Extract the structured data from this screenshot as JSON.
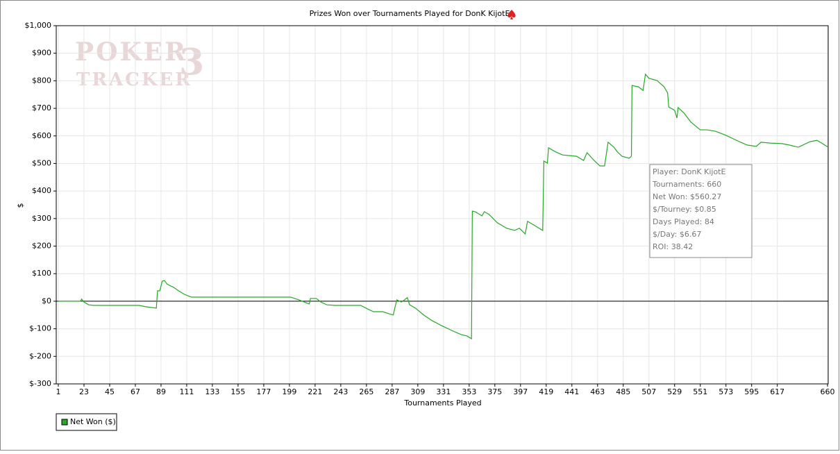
{
  "chart_data": {
    "type": "line",
    "title": "Prizes Won over Tournaments Played for DonK KijotE",
    "xlabel": "Tournaments Played",
    "ylabel": "$",
    "watermark": [
      "POKER",
      "3",
      "TRACKER"
    ],
    "annotations": [
      "Player: DonK KijotE",
      "Tournaments: 660",
      "Net Won: $560.27",
      "$/Tourney: $0.85",
      "Days Played: 84",
      "$/Day: $6.67",
      "ROI: 38.42"
    ],
    "grid": true,
    "legend": "bottom-left",
    "xlim": [
      1,
      660
    ],
    "ylim": [
      -300,
      1000
    ],
    "xticks": [
      1,
      23,
      45,
      67,
      89,
      111,
      133,
      155,
      177,
      199,
      221,
      243,
      265,
      287,
      309,
      331,
      353,
      375,
      397,
      419,
      441,
      463,
      485,
      507,
      529,
      551,
      573,
      595,
      617,
      660
    ],
    "yticks": [
      {
        "value": -300,
        "label": "$-300"
      },
      {
        "value": -200,
        "label": "$-200"
      },
      {
        "value": -100,
        "label": "$-100"
      },
      {
        "value": 0,
        "label": "$0"
      },
      {
        "value": 100,
        "label": "$100"
      },
      {
        "value": 200,
        "label": "$200"
      },
      {
        "value": 300,
        "label": "$300"
      },
      {
        "value": 400,
        "label": "$400"
      },
      {
        "value": 500,
        "label": "$500"
      },
      {
        "value": 600,
        "label": "$600"
      },
      {
        "value": 700,
        "label": "$700"
      },
      {
        "value": 800,
        "label": "$800"
      },
      {
        "value": 900,
        "label": "$900"
      },
      {
        "value": 1000,
        "label": "$1,000"
      }
    ],
    "x": [
      1,
      20,
      21,
      23,
      27,
      31,
      70,
      76,
      85,
      86,
      88,
      90,
      92,
      94,
      96,
      100,
      104,
      109,
      115,
      147,
      200,
      207,
      213,
      216,
      217,
      222,
      226,
      231,
      238,
      260,
      266,
      271,
      279,
      284,
      288,
      289,
      291,
      295,
      297,
      300,
      302,
      307,
      314,
      321,
      329,
      338,
      346,
      351,
      355,
      355.7,
      358,
      364,
      366,
      370,
      377,
      385,
      392,
      396,
      401,
      403,
      409,
      416,
      417,
      420,
      421,
      427,
      433,
      445,
      451,
      454,
      460,
      465,
      469,
      472,
      477,
      480,
      484,
      490,
      492,
      492.5,
      498,
      502,
      504,
      507,
      514,
      520,
      523,
      524,
      529,
      531,
      532,
      537,
      543,
      551,
      557,
      564,
      573,
      582,
      591,
      599,
      603,
      611,
      621,
      627,
      635,
      645,
      651,
      655,
      660
    ],
    "series": [
      {
        "name": "Net Won ($)",
        "color": "#22aa22",
        "values": [
          0,
          0,
          8,
          -3,
          -13,
          -15,
          -15,
          -20,
          -25,
          38,
          38,
          73,
          75,
          63,
          58,
          50,
          38,
          25,
          15,
          15,
          15,
          5,
          -5,
          -10,
          10,
          10,
          -3,
          -13,
          -15,
          -15,
          -28,
          -38,
          -38,
          -45,
          -50,
          -30,
          5,
          -3,
          3,
          13,
          -13,
          -25,
          -50,
          -70,
          -88,
          -106,
          -121,
          -126,
          -136,
          327,
          325,
          310,
          325,
          315,
          285,
          265,
          257,
          265,
          244,
          290,
          275,
          257,
          509,
          501,
          557,
          542,
          531,
          526,
          511,
          539,
          511,
          491,
          491,
          577,
          559,
          542,
          526,
          519,
          526,
          783,
          778,
          765,
          824,
          809,
          801,
          778,
          756,
          705,
          693,
          665,
          703,
          683,
          650,
          622,
          622,
          617,
          602,
          584,
          567,
          562,
          577,
          574,
          572,
          567,
          559,
          579,
          584,
          574,
          560.27
        ]
      }
    ]
  }
}
